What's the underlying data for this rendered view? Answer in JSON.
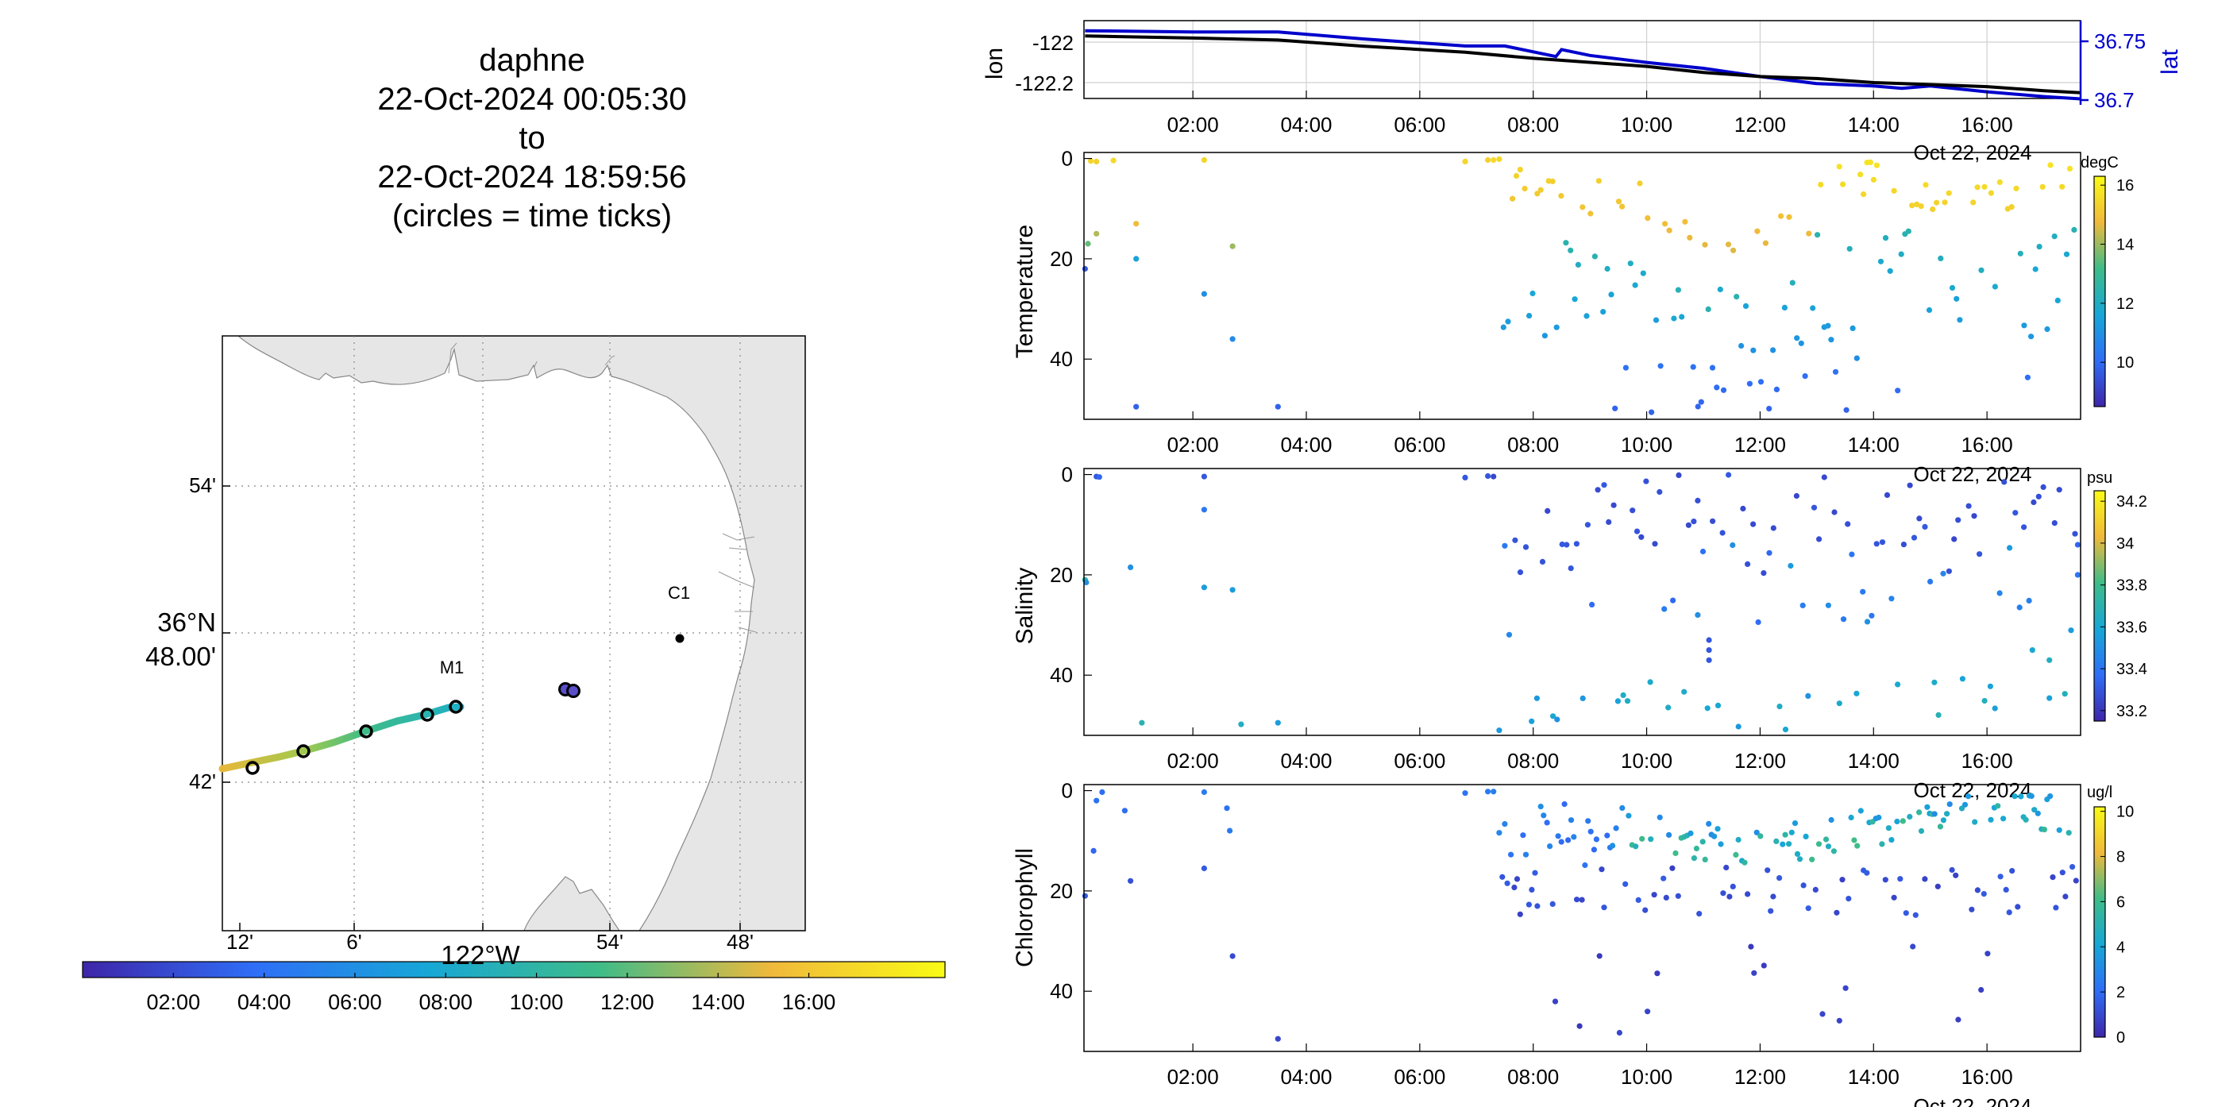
{
  "header": {
    "lines": [
      "daphne",
      "22-Oct-2024 00:05:30",
      "to",
      "22-Oct-2024 18:59:56",
      "(circles = time ticks)"
    ]
  },
  "map": {
    "lon_ticks": [
      "12'",
      "6'",
      "54'",
      "48'"
    ],
    "lon_center_label": "122°W",
    "lat_ticks": [
      "54'",
      "42'"
    ],
    "lat_center_label_line1": "36°N",
    "lat_center_label_line2": "48.00'",
    "stations": [
      {
        "name": "C1",
        "lon": -121.845,
        "lat": 36.797
      },
      {
        "name": "M1",
        "lon": -122.033,
        "lat": 36.748
      }
    ],
    "track_color_time_ticks": [
      "02:00",
      "04:00",
      "06:00",
      "08:00",
      "10:00",
      "12:00",
      "14:00",
      "16:00"
    ],
    "colors": {
      "land": "#e6e6e6",
      "coast": "#7f7f7f",
      "track_start": "#e6b83a",
      "track_end": "#1fb0c6"
    }
  },
  "chart_data": [
    {
      "type": "line",
      "title": "",
      "ylabel_left": "lon",
      "ylabel_right": "lat",
      "x_ticks": [
        "02:00",
        "04:00",
        "06:00",
        "08:00",
        "10:00",
        "12:00",
        "14:00",
        "16:00"
      ],
      "x_date_label": "Oct 22, 2024",
      "y_ticks_left": [
        "-122",
        "-122.2"
      ],
      "y_ticks_right": [
        "36.75",
        "36.7"
      ],
      "series": [
        {
          "name": "lon",
          "color": "#000000",
          "x": [
            0.1,
            2.0,
            3.5,
            5.0,
            6.8,
            8.0,
            9.0,
            10.0,
            11.0,
            12.0,
            13.0,
            14.0,
            15.0,
            16.0,
            17.0,
            17.65
          ],
          "values": [
            -121.97,
            -121.98,
            -121.99,
            -122.02,
            -122.05,
            -122.08,
            -122.1,
            -122.12,
            -122.15,
            -122.17,
            -122.18,
            -122.2,
            -122.21,
            -122.22,
            -122.24,
            -122.25
          ]
        },
        {
          "name": "lat",
          "color": "#0000cc",
          "x": [
            0.1,
            2.0,
            3.5,
            5.0,
            6.8,
            7.5,
            8.4,
            8.5,
            9.0,
            9.5,
            10.0,
            11.0,
            12.0,
            13.0,
            14.0,
            14.5,
            15.0,
            16.0,
            17.0,
            17.65
          ],
          "values": [
            36.759,
            36.758,
            36.758,
            36.752,
            36.746,
            36.746,
            36.737,
            36.743,
            36.738,
            36.735,
            36.732,
            36.727,
            36.72,
            36.714,
            36.712,
            36.71,
            36.712,
            36.707,
            36.703,
            36.701
          ]
        }
      ]
    },
    {
      "type": "scatter",
      "ylabel": "Temperature",
      "colorbar_label": "degC",
      "colorbar_ticks": [
        "16",
        "14",
        "12",
        "10"
      ],
      "clim": [
        8.5,
        16.3
      ],
      "x_ticks": [
        "02:00",
        "04:00",
        "06:00",
        "08:00",
        "10:00",
        "12:00",
        "14:00",
        "16:00"
      ],
      "x_date_label": "Oct 22, 2024",
      "y_ticks": [
        "0",
        "20",
        "40"
      ],
      "ylim": [
        0,
        52
      ]
    },
    {
      "type": "scatter",
      "ylabel": "Salinity",
      "colorbar_label": "psu",
      "colorbar_ticks": [
        "34.2",
        "34",
        "33.8",
        "33.6",
        "33.4",
        "33.2"
      ],
      "clim": [
        33.15,
        34.25
      ],
      "x_ticks": [
        "02:00",
        "04:00",
        "06:00",
        "08:00",
        "10:00",
        "12:00",
        "14:00",
        "16:00"
      ],
      "x_date_label": "Oct 22, 2024",
      "y_ticks": [
        "0",
        "20",
        "40"
      ],
      "ylim": [
        0,
        52
      ]
    },
    {
      "type": "scatter",
      "ylabel": "Chlorophyll",
      "colorbar_label": "ug/l",
      "colorbar_ticks": [
        "10",
        "8",
        "6",
        "4",
        "2",
        "0"
      ],
      "clim": [
        0,
        10.2
      ],
      "x_ticks": [
        "02:00",
        "04:00",
        "06:00",
        "08:00",
        "10:00",
        "12:00",
        "14:00",
        "16:00"
      ],
      "x_date_label": "Oct 22, 2024",
      "y_ticks": [
        "0",
        "20",
        "40"
      ],
      "ylim": [
        0,
        52
      ]
    }
  ]
}
